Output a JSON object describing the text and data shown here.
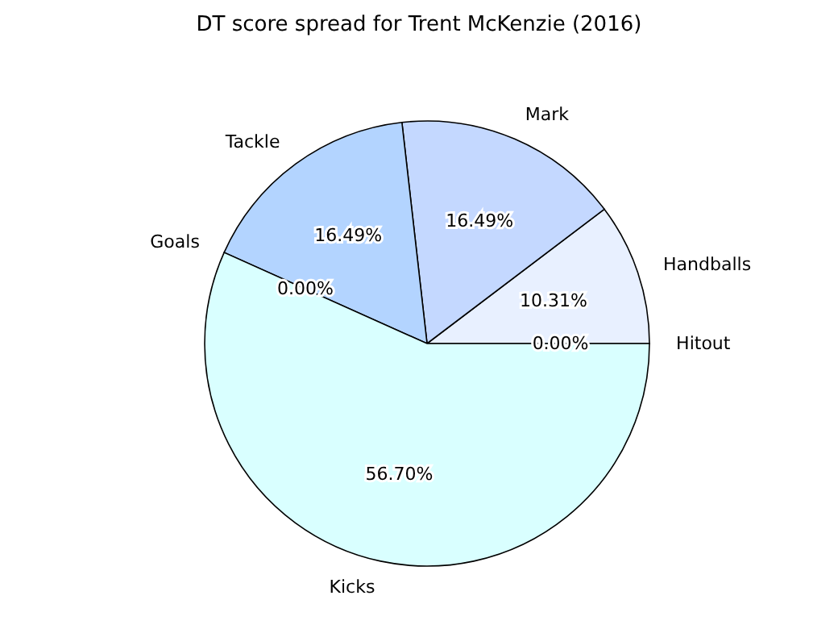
{
  "chart_data": {
    "type": "pie",
    "title": "DT score spread for Trent McKenzie (2016)",
    "categories": [
      "Handballs",
      "Mark",
      "Tackle",
      "Goals",
      "Kicks",
      "Hitout"
    ],
    "values": [
      10.31,
      16.49,
      16.49,
      0.0,
      56.7,
      0.0
    ],
    "colors": [
      "#e8f0ff",
      "#c4d8ff",
      "#b3d4ff",
      "#b3d4ff",
      "#d9ffff",
      "#e8f0ff"
    ],
    "value_labels": [
      "10.31%",
      "16.49%",
      "16.49%",
      "0.00%",
      "56.70%",
      "0.00%"
    ],
    "legend": false
  }
}
